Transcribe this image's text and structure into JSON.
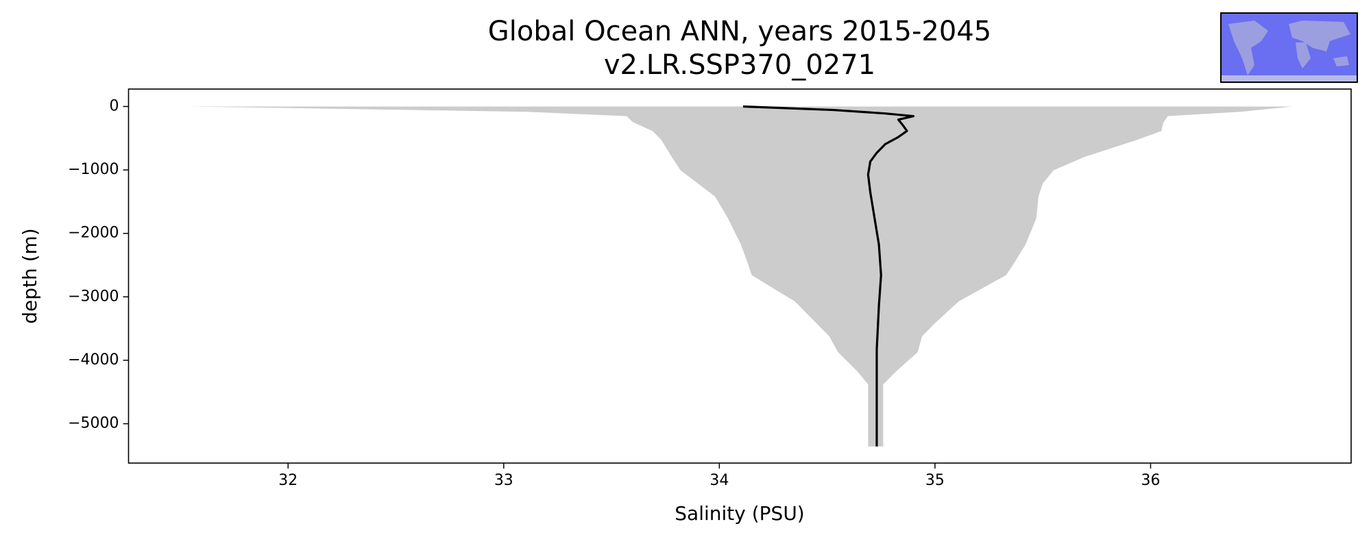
{
  "chart_data": {
    "type": "line",
    "title": "Global Ocean ANN, years 2015-2045",
    "subtitle": "v2.LR.SSP370_0271",
    "x_label": "Salinity (PSU)",
    "y_label": "depth (m)",
    "xlim": [
      31.26,
      36.93
    ],
    "ylim": [
      -5620,
      275
    ],
    "xticks": [
      32,
      33,
      34,
      35,
      36
    ],
    "yticks": [
      0,
      {
        "value": -1000,
        "label": "−1000"
      },
      {
        "value": -2000,
        "label": "−2000"
      },
      {
        "value": -3000,
        "label": "−3000"
      },
      {
        "value": -4000,
        "label": "−4000"
      },
      {
        "value": -5000,
        "label": "−5000"
      }
    ],
    "band": {
      "color": "#cccccc",
      "depth": [
        0,
        -83,
        -152,
        -248,
        -386,
        -523,
        -799,
        -1006,
        -1212,
        -1419,
        -1763,
        -2176,
        -2452,
        -2658,
        -3072,
        -3416,
        -3623,
        -3871,
        -4174,
        -4380,
        -5358
      ],
      "min": [
        31.53,
        33.1,
        33.57,
        33.6,
        33.69,
        33.73,
        33.78,
        33.82,
        33.9,
        33.98,
        34.04,
        34.1,
        34.13,
        34.15,
        34.35,
        34.45,
        34.51,
        34.55,
        34.64,
        34.69,
        34.69
      ],
      "max": [
        36.66,
        36.42,
        36.08,
        36.06,
        36.05,
        35.94,
        35.69,
        35.55,
        35.5,
        35.48,
        35.47,
        35.42,
        35.37,
        35.33,
        35.11,
        35.0,
        34.94,
        34.92,
        34.82,
        34.76,
        34.76
      ]
    },
    "line": {
      "color": "#000000",
      "depth": [
        0,
        -55,
        -110,
        -152,
        -207,
        -290,
        -386,
        -482,
        -592,
        -730,
        -868,
        -1074,
        -1350,
        -1763,
        -2176,
        -2658,
        -3140,
        -3829,
        -4518,
        -5358
      ],
      "salinity": [
        34.11,
        34.53,
        34.77,
        34.9,
        34.83,
        34.85,
        34.87,
        34.83,
        34.77,
        34.73,
        34.7,
        34.69,
        34.7,
        34.72,
        34.74,
        34.75,
        34.74,
        34.73,
        34.73,
        34.73
      ]
    }
  }
}
